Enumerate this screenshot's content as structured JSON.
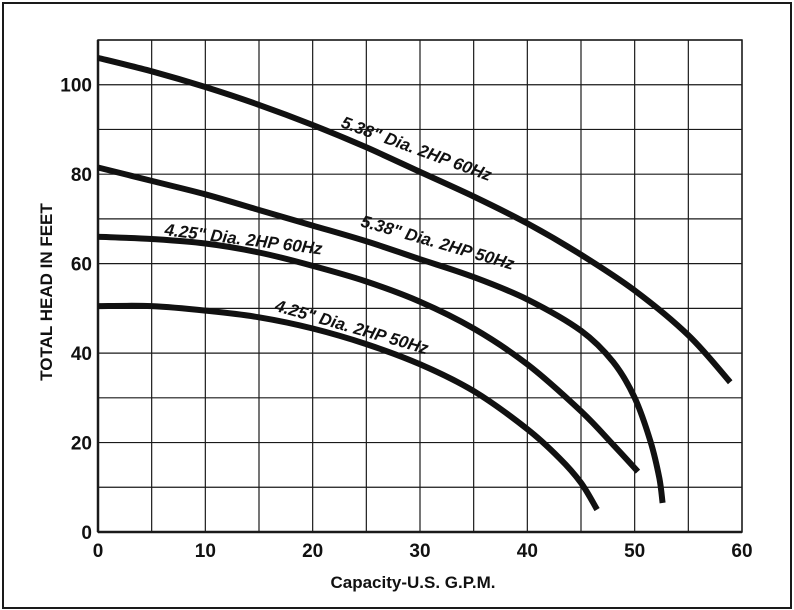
{
  "chart_data": {
    "type": "line",
    "title": "",
    "xlabel": "Capacity-U.S. G.P.M.",
    "ylabel": "TOTAL HEAD IN FEET",
    "xlim": [
      0,
      60
    ],
    "ylim": [
      0,
      110
    ],
    "x_ticks": [
      "0",
      "10",
      "20",
      "30",
      "40",
      "50",
      "60"
    ],
    "y_ticks": [
      "0",
      "20",
      "40",
      "60",
      "80",
      "100"
    ],
    "grid": true,
    "x_grid_step": 5,
    "y_grid_step": 10,
    "series": [
      {
        "name": "5.38\" Dia.  2HP 60Hz",
        "x": [
          0,
          5,
          10,
          15,
          20,
          25,
          30,
          35,
          40,
          45,
          50,
          55,
          58.9
        ],
        "y": [
          106,
          103,
          99.5,
          95.5,
          91,
          86,
          80.5,
          75,
          69,
          62,
          54,
          44,
          33.5
        ]
      },
      {
        "name": "5.38\" Dia.  2HP 50Hz",
        "x": [
          0,
          5,
          10,
          15,
          20,
          25,
          30,
          35,
          40,
          45,
          48,
          50,
          51.5,
          52.3,
          52.6
        ],
        "y": [
          81.5,
          78.5,
          75.5,
          72,
          68.5,
          65,
          61,
          57,
          52,
          45,
          38,
          30,
          20,
          12,
          6.5
        ]
      },
      {
        "name": "4.25\" Dia.  2HP 60Hz",
        "x": [
          0,
          5,
          10,
          15,
          20,
          25,
          30,
          35,
          40,
          45,
          48,
          50.3
        ],
        "y": [
          66,
          65.5,
          64.5,
          62.5,
          59.5,
          56,
          51.5,
          45.5,
          37.5,
          27,
          19.5,
          13.5
        ]
      },
      {
        "name": "4.25\" Dia.  2HP 50Hz",
        "x": [
          0,
          5,
          10,
          15,
          20,
          25,
          30,
          35,
          40,
          43,
          45,
          46.5
        ],
        "y": [
          50.5,
          50.5,
          49.5,
          48,
          45.5,
          42,
          37.5,
          31.5,
          23,
          16.5,
          11,
          5
        ]
      }
    ],
    "line_color": "#111111",
    "grid_color": "#1a1a1a"
  }
}
